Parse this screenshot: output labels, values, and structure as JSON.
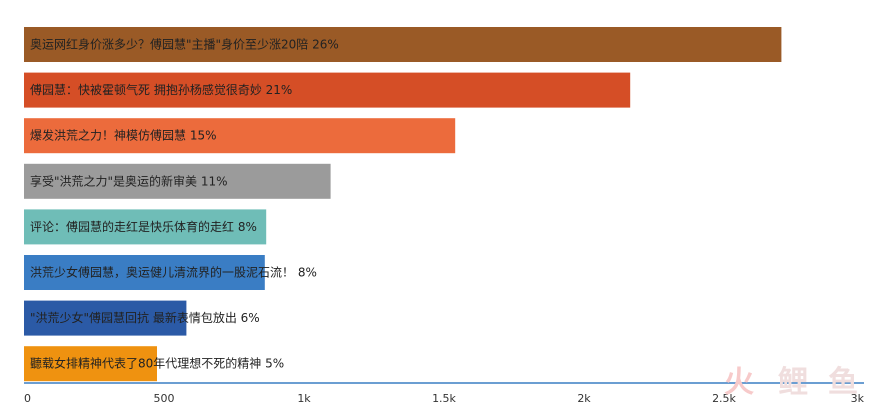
{
  "chart_data": {
    "type": "bar",
    "orientation": "horizontal",
    "title": "",
    "xlabel": "",
    "ylabel": "",
    "xlim": [
      0,
      3000
    ],
    "xticks": [
      0,
      500,
      1000,
      1500,
      2000,
      2500,
      3000
    ],
    "xtick_labels": [
      "0",
      "500",
      "1k",
      "1.5k",
      "2k",
      "2.5k",
      "3k"
    ],
    "grid": false,
    "categories": [
      "奥运网红身价涨多少？傅园慧\"主播\"身价至少涨20陪 26%",
      "傅园慧：快被霍顿气死 拥抱孙杨感觉很奇妙 21%",
      "爆发洪荒之力！神模仿傅园慧 15%",
      "享受\"洪荒之力\"是奥运的新审美 11%",
      "评论：傅园慧的走红是快乐体育的走红 8%",
      "洪荒少女傅园慧，奥运健儿清流界的一股泥石流！ 8%",
      "\"洪荒少女\"傅园慧回抗 最新表情包放出 6%",
      "聽载女排精神代表了80年代理想不死的精神 5%"
    ],
    "values": [
      2705,
      2165,
      1540,
      1095,
      865,
      860,
      580,
      475
    ],
    "colors": [
      "#9a5a26",
      "#d54e26",
      "#ec6b3c",
      "#9b9b9b",
      "#6fbdb7",
      "#3a7dc4",
      "#2b5aa6",
      "#ef9210"
    ],
    "axis_color": "#3a7fc3"
  },
  "watermark": {
    "part1": "火",
    "part2": "鲤",
    "part3": "鱼"
  }
}
